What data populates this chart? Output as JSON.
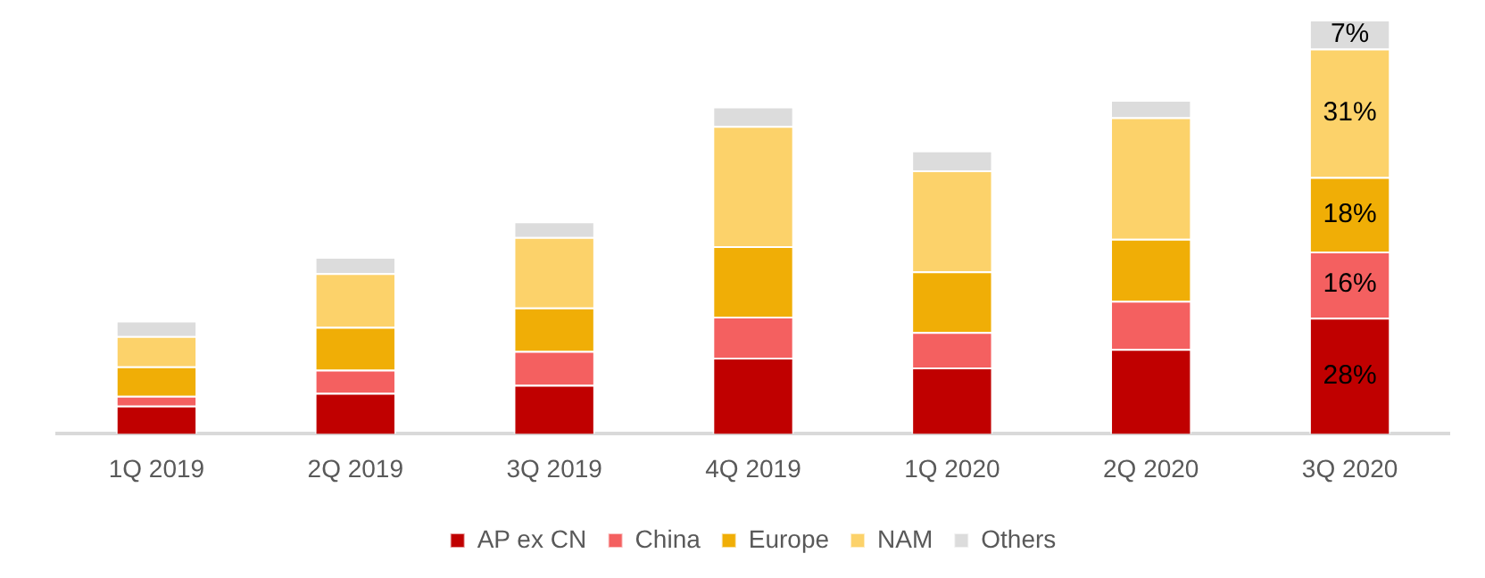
{
  "chart_data": {
    "type": "bar",
    "stacked": true,
    "legend": "bottom",
    "grid": false,
    "tick_labels": "x",
    "categories": [
      "1Q 2019",
      "2Q 2019",
      "3Q 2019",
      "4Q 2019",
      "1Q 2020",
      "2Q 2020",
      "3Q 2020"
    ],
    "series": [
      {
        "name": "AP ex CN",
        "color": "#c00000",
        "values": [
          6.8,
          9.9,
          11.8,
          18.4,
          16,
          20.5,
          28
        ],
        "value_labels": [
          null,
          null,
          null,
          null,
          null,
          null,
          "28%"
        ]
      },
      {
        "name": "China",
        "color": "#f46060",
        "values": [
          2.4,
          5.6,
          8.2,
          9.9,
          8.6,
          11.6,
          16
        ],
        "value_labels": [
          null,
          null,
          null,
          null,
          null,
          null,
          "16%"
        ]
      },
      {
        "name": "Europe",
        "color": "#f0ae06",
        "values": [
          7.1,
          10.3,
          10.5,
          17,
          14.6,
          15,
          18
        ],
        "value_labels": [
          null,
          null,
          null,
          null,
          null,
          null,
          "18%"
        ]
      },
      {
        "name": "NAM",
        "color": "#fcd26a",
        "values": [
          7.3,
          13,
          17,
          29,
          24.4,
          29.3,
          31
        ],
        "value_labels": [
          null,
          null,
          null,
          null,
          null,
          null,
          "31%"
        ]
      },
      {
        "name": "Others",
        "color": "#dcdcdc",
        "values": [
          3.7,
          3.9,
          3.8,
          4.7,
          4.8,
          4.2,
          7
        ],
        "value_labels": [
          null,
          null,
          null,
          null,
          null,
          null,
          "7%"
        ]
      }
    ]
  }
}
